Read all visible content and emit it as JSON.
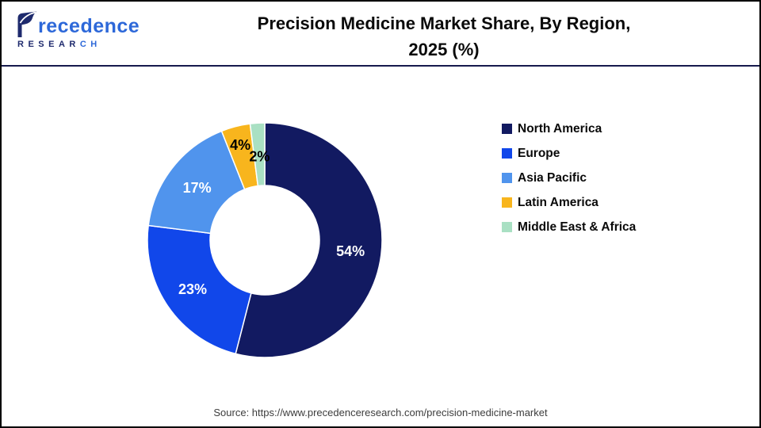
{
  "header": {
    "logo": {
      "rest": "recedence",
      "sub_main": "RESEAR",
      "sub_accent": "CH",
      "navy_color": "#1e2a6d",
      "blue_color": "#2d68d9"
    },
    "title_line1": "Precision Medicine Market Share, By Region,",
    "title_line2": "2025 (%)"
  },
  "chart_data": {
    "type": "pie",
    "title": "Precision Medicine Market Share, By Region, 2025 (%)",
    "donut": true,
    "hole_radius_ratio": 0.465,
    "start_angle_deg": 0,
    "direction": "clockwise",
    "legend_position": "right",
    "value_suffix": "%",
    "slices": [
      {
        "label": "North America",
        "value": 54,
        "color": "#121a61",
        "label_color": "#ffffff",
        "label_r": 109
      },
      {
        "label": "Europe",
        "value": 23,
        "color": "#1147ea",
        "label_color": "#ffffff",
        "label_r": 110
      },
      {
        "label": "Asia Pacific",
        "value": 17,
        "color": "#5094ed",
        "label_color": "#ffffff",
        "label_r": 108
      },
      {
        "label": "Latin America",
        "value": 4,
        "color": "#f8b51d",
        "label_color": "#000000",
        "label_r": 124
      },
      {
        "label": "Middle East & Africa",
        "value": 2,
        "color": "#a9e0c3",
        "label_color": "#000000",
        "label_r": 106
      }
    ]
  },
  "source": {
    "text": "Source: https://www.precedenceresearch.com/precision-medicine-market"
  }
}
